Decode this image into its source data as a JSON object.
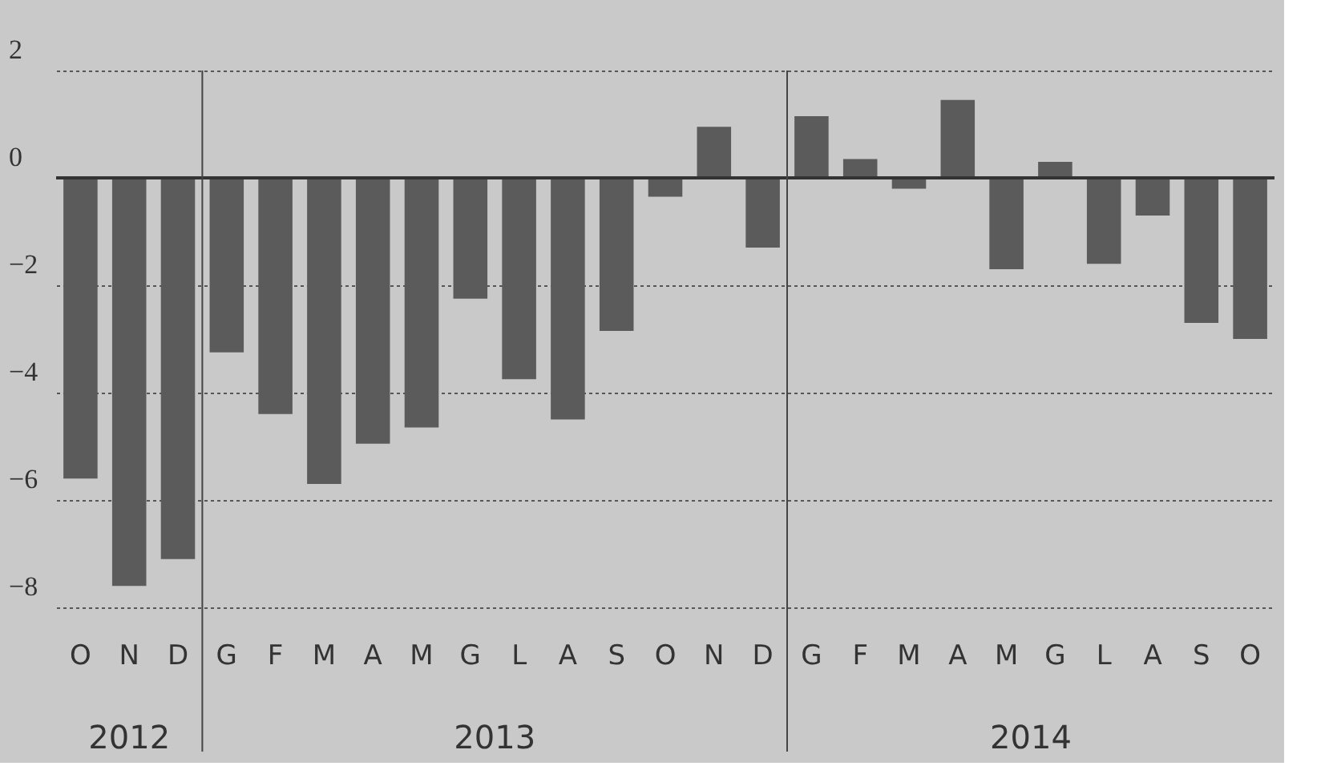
{
  "chart_data": {
    "type": "bar",
    "categories": [
      "O",
      "N",
      "D",
      "G",
      "F",
      "M",
      "A",
      "M",
      "G",
      "L",
      "A",
      "S",
      "O",
      "N",
      "D",
      "G",
      "F",
      "M",
      "A",
      "M",
      "G",
      "L",
      "A",
      "S",
      "O"
    ],
    "values": [
      -5.6,
      -7.6,
      -7.1,
      -3.25,
      -4.4,
      -5.7,
      -4.95,
      -4.65,
      -2.25,
      -3.75,
      -4.5,
      -2.85,
      -0.35,
      0.95,
      -1.3,
      1.15,
      0.35,
      -0.2,
      1.45,
      -1.7,
      0.3,
      -1.6,
      -0.7,
      -2.7,
      -3.0
    ],
    "color": "#5b5b5b",
    "ylim": [
      -8,
      2
    ],
    "yticks": [
      -8,
      -6,
      -4,
      -2,
      0,
      2
    ],
    "grid": "y",
    "ref_lines": [
      {
        "axis": "y",
        "value": 0,
        "color": "#333333"
      }
    ],
    "annotations": [
      "2012",
      "2013",
      "2014"
    ]
  }
}
